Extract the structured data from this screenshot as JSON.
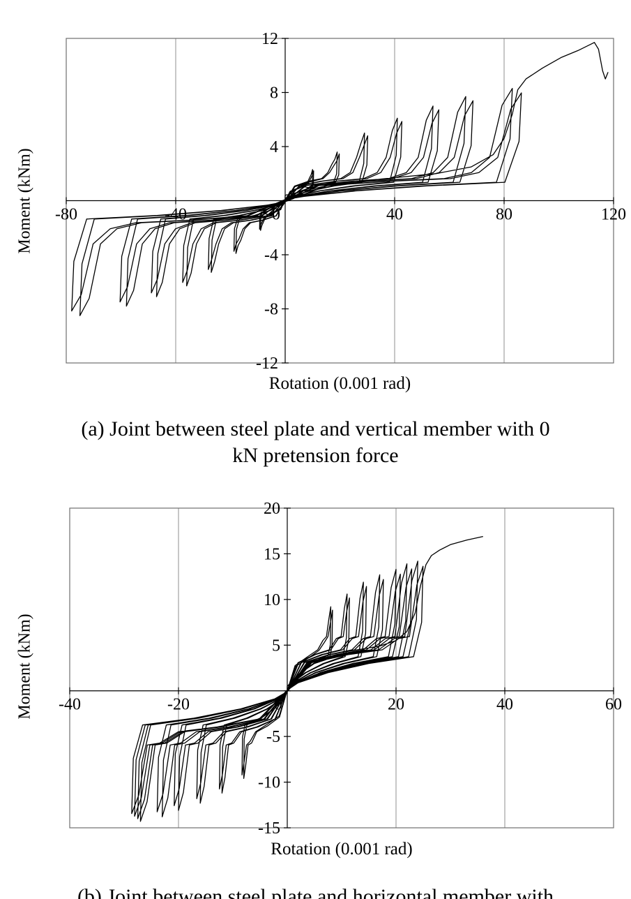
{
  "captions": {
    "a_line1": "(a)  Joint between steel plate and vertical member with 0",
    "a_line2": "kN pretension force",
    "b_partial": "(b)  Joint between steel plate and horizontal member with"
  },
  "chart_data": [
    {
      "id": "a",
      "type": "line",
      "title": "",
      "xlabel": "Rotation (0.001 rad)",
      "ylabel": "Moment (kNm)",
      "xlim": [
        -80,
        120
      ],
      "xticks": [
        -80,
        -40,
        0,
        40,
        80,
        120
      ],
      "ylim": [
        -12,
        12
      ],
      "yticks": [
        -12,
        -8,
        -4,
        0,
        4,
        8,
        12
      ],
      "grid": "vertical gridlines at x ticks only",
      "legend": "none",
      "series_description": "Pinched cyclic moment-rotation hysteresis loops of increasing amplitude, two cycles per amplitude, ending with a monotonic push to about 11.7 kNm at 113 (0.001 rad) followed by a sharp drop to about 9 kNm",
      "plateau_pos": 1.6,
      "plateau_neg": -1.6,
      "knee_factor": 2.0,
      "cycles": [
        {
          "rot_pos": 10,
          "m_pos": 2.3,
          "rot_neg": -9,
          "m_neg": -2.2
        },
        {
          "rot_pos": 19,
          "m_pos": 3.6,
          "rot_neg": -18,
          "m_neg": -3.9
        },
        {
          "rot_pos": 29,
          "m_pos": 5.0,
          "rot_neg": -27,
          "m_neg": -5.3
        },
        {
          "rot_pos": 41,
          "m_pos": 6.1,
          "rot_neg": -36,
          "m_neg": -6.3
        },
        {
          "rot_pos": 54,
          "m_pos": 7.0,
          "rot_neg": -47,
          "m_neg": -7.1
        },
        {
          "rot_pos": 66,
          "m_pos": 7.7,
          "rot_neg": -58,
          "m_neg": -7.8
        },
        {
          "rot_pos": 83,
          "m_pos": 8.3,
          "rot_neg": -75,
          "m_neg": -8.5
        }
      ],
      "final_branch": [
        [
          0,
          0.4
        ],
        [
          15,
          1.1
        ],
        [
          35,
          1.6
        ],
        [
          55,
          2.0
        ],
        [
          68,
          2.5
        ],
        [
          76,
          3.4
        ],
        [
          80,
          4.6
        ],
        [
          83,
          6.4
        ],
        [
          85,
          8.2
        ],
        [
          88,
          9.0
        ],
        [
          94,
          9.8
        ],
        [
          101,
          10.6
        ],
        [
          107,
          11.1
        ],
        [
          111,
          11.5
        ],
        [
          113,
          11.7
        ],
        [
          114.5,
          11.2
        ],
        [
          116,
          9.6
        ],
        [
          117,
          9.0
        ],
        [
          118,
          9.5
        ]
      ]
    },
    {
      "id": "b",
      "type": "line",
      "title": "",
      "xlabel": "Rotation (0.001 rad)",
      "ylabel": "Moment (kNm)",
      "xlim": [
        -40,
        60
      ],
      "xticks": [
        -40,
        -20,
        0,
        20,
        40,
        60
      ],
      "ylim": [
        -15,
        20
      ],
      "yticks": [
        -15,
        -10,
        -5,
        0,
        5,
        10,
        15,
        20
      ],
      "grid": "vertical gridlines at x ticks only",
      "legend": "none",
      "series_description": "Pinched cyclic moment-rotation hysteresis loops of increasing amplitude, two cycles per amplitude, ending with a monotonic push to about 16.9 kNm at 36 (0.001 rad)",
      "plateau_pos": 4.4,
      "plateau_neg": -4.4,
      "knee_factor": 1.35,
      "cycles": [
        {
          "rot_pos": 8,
          "m_pos": 9.2,
          "rot_neg": -8,
          "m_neg": -9.6
        },
        {
          "rot_pos": 11,
          "m_pos": 10.6,
          "rot_neg": -12,
          "m_neg": -11.2
        },
        {
          "rot_pos": 14,
          "m_pos": 11.9,
          "rot_neg": -16,
          "m_neg": -12.3
        },
        {
          "rot_pos": 17,
          "m_pos": 12.7,
          "rot_neg": -20,
          "m_neg": -13.1
        },
        {
          "rot_pos": 20,
          "m_pos": 13.3,
          "rot_neg": -23,
          "m_neg": -13.8
        },
        {
          "rot_pos": 22,
          "m_pos": 13.9,
          "rot_neg": -27,
          "m_neg": -14.3
        },
        {
          "rot_pos": 24,
          "m_pos": 14.2,
          "rot_neg": -27.5,
          "m_neg": -14.0
        }
      ],
      "final_branch": [
        [
          0,
          0.5
        ],
        [
          4,
          3.0
        ],
        [
          8,
          4.0
        ],
        [
          13,
          4.5
        ],
        [
          17,
          4.9
        ],
        [
          20,
          5.5
        ],
        [
          22,
          6.5
        ],
        [
          23.5,
          8.5
        ],
        [
          24.5,
          11.5
        ],
        [
          25.5,
          13.8
        ],
        [
          26.5,
          14.8
        ],
        [
          28,
          15.4
        ],
        [
          30,
          16.0
        ],
        [
          33,
          16.5
        ],
        [
          36,
          16.9
        ]
      ]
    }
  ]
}
